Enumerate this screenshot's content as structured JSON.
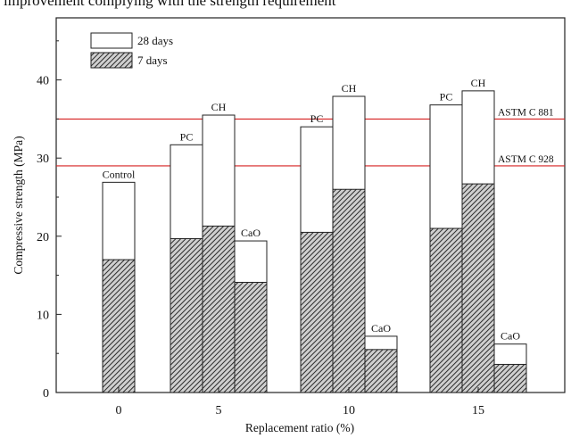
{
  "top_caption": "improvement complying with the strength requirement",
  "chart_data": {
    "type": "bar",
    "title": "",
    "xlabel": "Replacement ratio (%)",
    "ylabel": "Compressive strength (MPa)",
    "ylim": [
      0,
      45
    ],
    "yticks": [
      0,
      10,
      20,
      30,
      40
    ],
    "xticks": [
      "0",
      "5",
      "10",
      "15"
    ],
    "legend": {
      "position": "top-left",
      "entries": [
        {
          "label": "28 days",
          "fill": "white"
        },
        {
          "label": "7 days",
          "fill": "hatched"
        }
      ]
    },
    "reference_lines": [
      {
        "label": "ASTM C 881",
        "value": 35,
        "color": "#d62020"
      },
      {
        "label": "ASTM C 928",
        "value": 29,
        "color": "#d62020"
      }
    ],
    "groups": [
      {
        "x": "0",
        "bars": [
          {
            "label": "Control",
            "day28": 26.9,
            "day7": 17.0
          }
        ]
      },
      {
        "x": "5",
        "bars": [
          {
            "label": "PC",
            "day28": 31.7,
            "day7": 19.7
          },
          {
            "label": "CH",
            "day28": 35.5,
            "day7": 21.3
          },
          {
            "label": "CaO",
            "day28": 19.4,
            "day7": 14.1
          }
        ]
      },
      {
        "x": "10",
        "bars": [
          {
            "label": "PC",
            "day28": 34.0,
            "day7": 20.5
          },
          {
            "label": "CH",
            "day28": 37.9,
            "day7": 26.0
          },
          {
            "label": "CaO",
            "day28": 7.2,
            "day7": 5.5
          }
        ]
      },
      {
        "x": "15",
        "bars": [
          {
            "label": "PC",
            "day28": 36.8,
            "day7": 21.0
          },
          {
            "label": "CH",
            "day28": 38.6,
            "day7": 26.7
          },
          {
            "label": "CaO",
            "day28": 6.2,
            "day7": 3.6
          }
        ]
      }
    ]
  }
}
